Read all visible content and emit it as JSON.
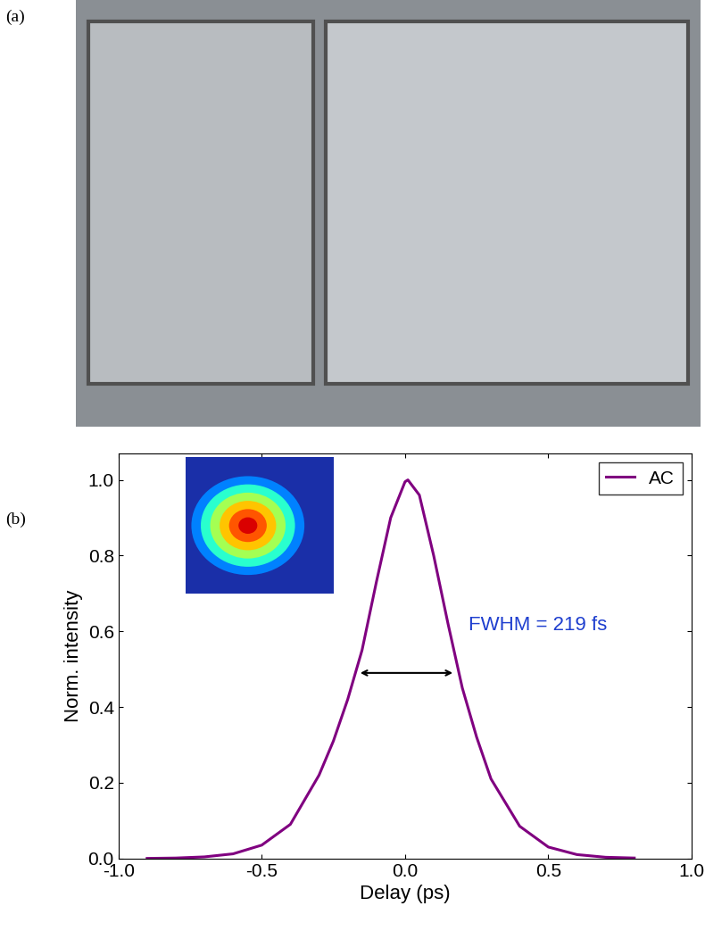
{
  "panel_labels": [
    "(a)",
    "(b)"
  ],
  "chart_data": {
    "type": "line",
    "x_label": "Delay (ps)",
    "y_label": "Norm. intensity",
    "x": [
      -0.9,
      -0.8,
      -0.7,
      -0.6,
      -0.5,
      -0.4,
      -0.3,
      -0.25,
      -0.2,
      -0.15,
      -0.1,
      -0.05,
      0.0,
      0.01,
      0.05,
      0.1,
      0.15,
      0.2,
      0.25,
      0.3,
      0.4,
      0.5,
      0.6,
      0.7,
      0.8
    ],
    "series": [
      {
        "name": "AC",
        "color": "#800080",
        "values": [
          0.0,
          0.001,
          0.004,
          0.012,
          0.035,
          0.09,
          0.22,
          0.31,
          0.42,
          0.55,
          0.73,
          0.9,
          0.995,
          1.0,
          0.96,
          0.8,
          0.62,
          0.45,
          0.32,
          0.21,
          0.085,
          0.03,
          0.01,
          0.003,
          0.001
        ]
      }
    ],
    "xlim": [
      -1.0,
      1.0
    ],
    "xticks": [
      {
        "value": -1.0,
        "label": "-1.0"
      },
      {
        "value": -0.5,
        "label": "-0.5"
      },
      {
        "value": 0.0,
        "label": "0.0"
      },
      {
        "value": 0.5,
        "label": "0.5"
      },
      {
        "value": 1.0,
        "label": "1.0"
      }
    ],
    "ylim": [
      0.0,
      1.07
    ],
    "yticks": [
      {
        "value": 0.0,
        "label": "0.0"
      },
      {
        "value": 0.2,
        "label": "0.2"
      },
      {
        "value": 0.4,
        "label": "0.4"
      },
      {
        "value": 0.6,
        "label": "0.6"
      },
      {
        "value": 0.8,
        "label": "0.8"
      },
      {
        "value": 1.0,
        "label": "1.0"
      }
    ],
    "legend": "upper right",
    "grid": false,
    "annotation": {
      "text": "FWHM = 219 fs",
      "color": "#1f3fcf",
      "arrow_x": [
        -0.165,
        0.175
      ],
      "arrow_y": 0.49
    }
  }
}
